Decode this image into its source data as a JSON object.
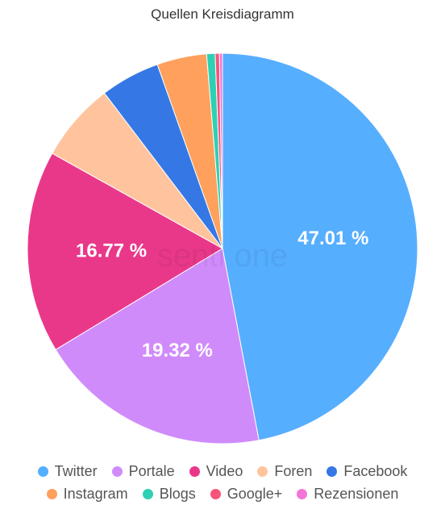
{
  "chart_data": {
    "type": "pie",
    "title": "Quellen Kreisdiagramm",
    "watermark": "senti one",
    "legend_position": "bottom",
    "series": [
      {
        "name": "Twitter",
        "value": 47.01,
        "color": "#56aeff",
        "label": "47.01 %"
      },
      {
        "name": "Portale",
        "value": 19.32,
        "color": "#d08bfb",
        "label": "19.32 %"
      },
      {
        "name": "Video",
        "value": 16.77,
        "color": "#e9388a",
        "label": "16.77 %"
      },
      {
        "name": "Foren",
        "value": 6.55,
        "color": "#ffc49e",
        "label": ""
      },
      {
        "name": "Facebook",
        "value": 4.93,
        "color": "#3578e5",
        "label": ""
      },
      {
        "name": "Instagram",
        "value": 4.12,
        "color": "#ffa05c",
        "label": ""
      },
      {
        "name": "Blogs",
        "value": 0.7,
        "color": "#2ed0b4",
        "label": ""
      },
      {
        "name": "Google+",
        "value": 0.35,
        "color": "#f6547a",
        "label": ""
      },
      {
        "name": "Rezensionen",
        "value": 0.25,
        "color": "#f375d8",
        "label": ""
      }
    ]
  }
}
